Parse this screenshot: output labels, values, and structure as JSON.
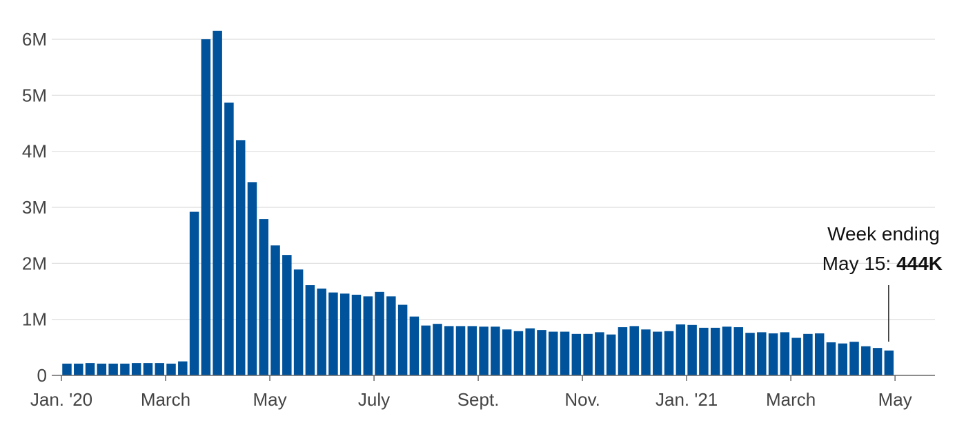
{
  "chart_data": {
    "type": "bar",
    "title": "",
    "xlabel": "",
    "ylabel": "",
    "ylim": [
      0,
      6000000
    ],
    "y_ticks": [
      {
        "value": 0,
        "label": "0"
      },
      {
        "value": 1000000,
        "label": "1M"
      },
      {
        "value": 2000000,
        "label": "2M"
      },
      {
        "value": 3000000,
        "label": "3M"
      },
      {
        "value": 4000000,
        "label": "4M"
      },
      {
        "value": 5000000,
        "label": "5M"
      },
      {
        "value": 6000000,
        "label": "6M"
      }
    ],
    "x_ticks": [
      {
        "index": 0,
        "label": "Jan. '20"
      },
      {
        "index": 9,
        "label": "March"
      },
      {
        "index": 18,
        "label": "May"
      },
      {
        "index": 27,
        "label": "July"
      },
      {
        "index": 36,
        "label": "Sept."
      },
      {
        "index": 45,
        "label": "Nov."
      },
      {
        "index": 54,
        "label": "Jan. '21"
      },
      {
        "index": 63,
        "label": "March"
      },
      {
        "index": 72,
        "label": "May"
      }
    ],
    "grid": true,
    "bar_color": "#00539b",
    "values": [
      210000,
      210000,
      220000,
      210000,
      210000,
      210000,
      220000,
      220000,
      220000,
      210000,
      250000,
      2920000,
      6000000,
      6150000,
      4870000,
      4200000,
      3450000,
      2790000,
      2320000,
      2150000,
      1890000,
      1610000,
      1550000,
      1480000,
      1460000,
      1440000,
      1410000,
      1490000,
      1410000,
      1260000,
      1050000,
      890000,
      920000,
      880000,
      880000,
      880000,
      870000,
      870000,
      820000,
      790000,
      840000,
      810000,
      780000,
      780000,
      740000,
      740000,
      770000,
      730000,
      860000,
      880000,
      820000,
      780000,
      790000,
      910000,
      900000,
      850000,
      850000,
      870000,
      860000,
      760000,
      770000,
      750000,
      770000,
      670000,
      740000,
      750000,
      590000,
      570000,
      600000,
      520000,
      490000,
      444000
    ],
    "annotation": {
      "index": 71,
      "line1": "Week ending",
      "line2_prefix": "May 15: ",
      "line2_value": "444K"
    }
  }
}
